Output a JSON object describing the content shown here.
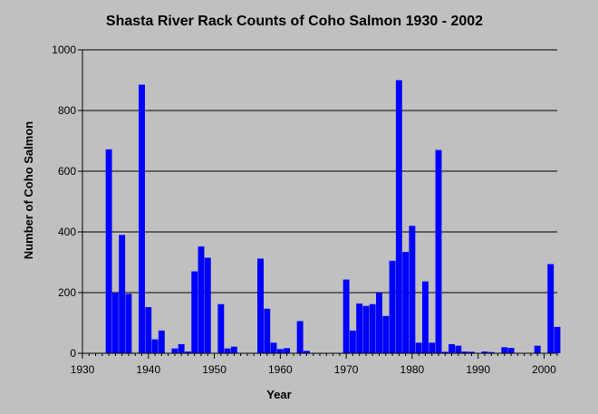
{
  "chart_data": {
    "type": "bar",
    "title": "Shasta River Rack Counts of Coho Salmon 1930 - 2002",
    "xlabel": "Year",
    "ylabel": "Number of Coho Salmon",
    "xlim": [
      1930,
      2002
    ],
    "ylim": [
      0,
      1000
    ],
    "x_ticks": [
      1930,
      1940,
      1950,
      1960,
      1970,
      1980,
      1990,
      2000
    ],
    "y_ticks": [
      0,
      200,
      400,
      600,
      800,
      1000
    ],
    "grid": "horizontal",
    "colors": {
      "background": "#c0c0c0",
      "bar": "#0000ff",
      "gridline": "#000000"
    },
    "x": [
      1934,
      1935,
      1936,
      1937,
      1939,
      1940,
      1941,
      1942,
      1944,
      1945,
      1946,
      1947,
      1948,
      1949,
      1951,
      1952,
      1953,
      1957,
      1958,
      1959,
      1960,
      1961,
      1963,
      1964,
      1970,
      1971,
      1972,
      1973,
      1974,
      1975,
      1976,
      1977,
      1978,
      1979,
      1980,
      1981,
      1982,
      1983,
      1984,
      1985,
      1986,
      1987,
      1988,
      1989,
      1991,
      1992,
      1994,
      1995,
      1999,
      2001,
      2002
    ],
    "values": [
      672,
      200,
      390,
      196,
      885,
      152,
      46,
      75,
      16,
      30,
      6,
      270,
      352,
      315,
      162,
      16,
      22,
      312,
      147,
      35,
      14,
      17,
      106,
      8,
      243,
      75,
      164,
      156,
      162,
      200,
      123,
      305,
      900,
      334,
      420,
      35,
      237,
      35,
      670,
      5,
      30,
      25,
      6,
      5,
      6,
      4,
      20,
      18,
      25,
      294,
      87
    ]
  }
}
